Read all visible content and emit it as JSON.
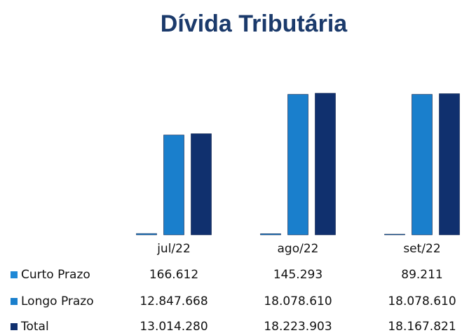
{
  "chart_data": {
    "type": "bar",
    "title": "Dívida Tributária",
    "categories": [
      "jul/22",
      "ago/22",
      "set/22"
    ],
    "series": [
      {
        "name": "Curto Prazo",
        "color": "#1e88d6",
        "values": [
          166612,
          145293,
          89211
        ],
        "value_labels": [
          "166.612",
          "145.293",
          "89.211"
        ]
      },
      {
        "name": "Longo Prazo",
        "color": "#1a7fcc",
        "values": [
          12847668,
          18078610,
          18078610
        ],
        "value_labels": [
          "12.847.668",
          "18.078.610",
          "18.078.610"
        ]
      },
      {
        "name": "Total",
        "color": "#10306e",
        "values": [
          13014280,
          18223903,
          18167821
        ],
        "value_labels": [
          "13.014.280",
          "18.223.903",
          "18.167.821"
        ]
      }
    ]
  }
}
